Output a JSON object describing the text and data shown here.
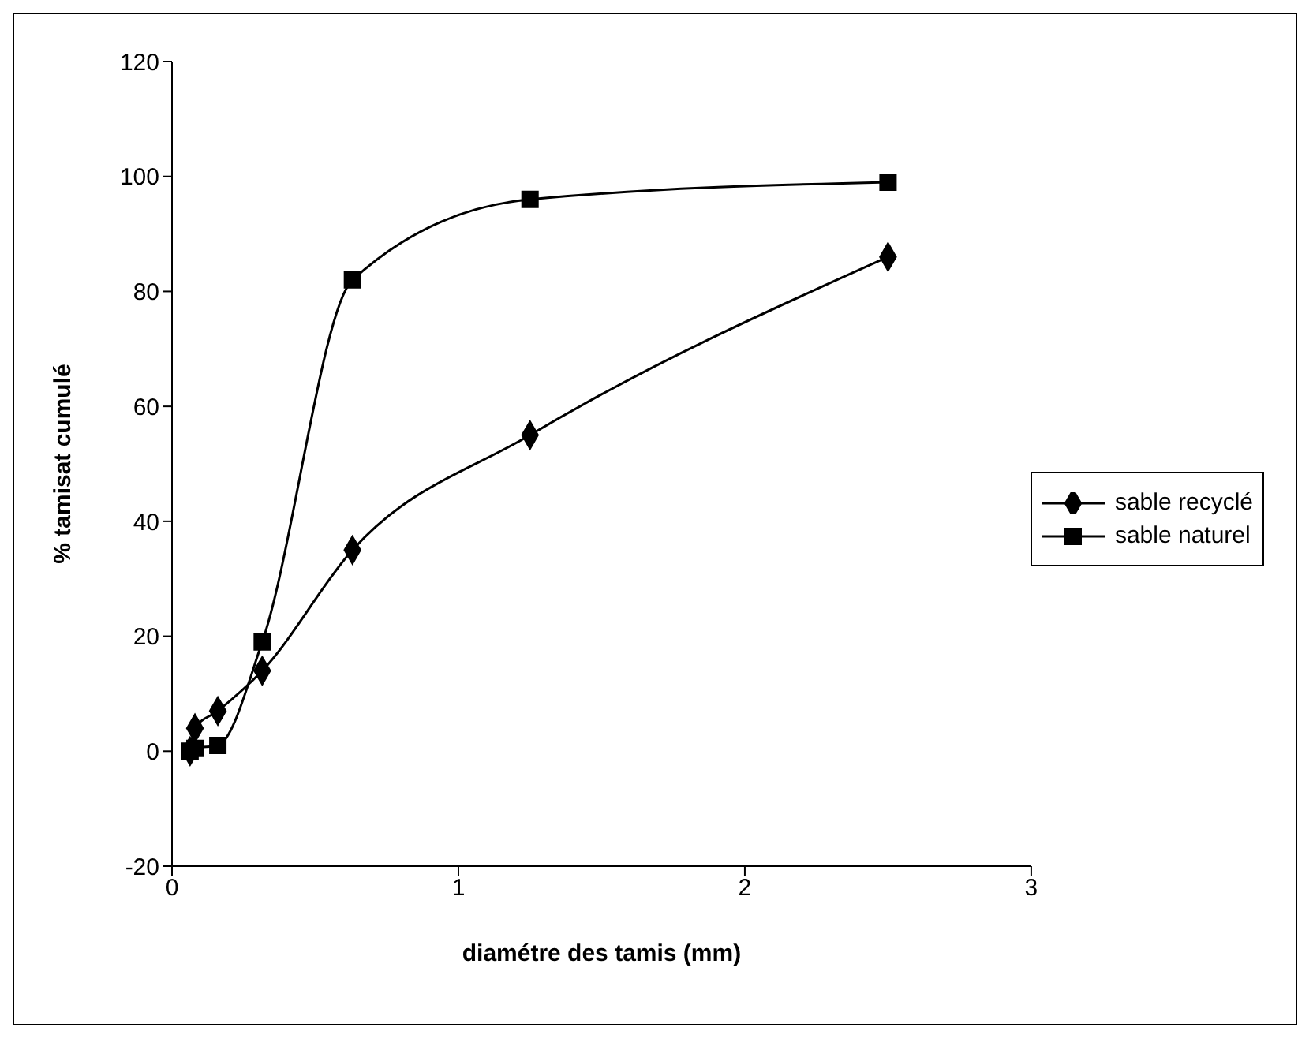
{
  "chart_data": {
    "type": "line",
    "xlabel": "diamétre des tamis (mm)",
    "ylabel": "% tamisat cumulé",
    "series": [
      {
        "name": "sable recyclé",
        "color": "#000000",
        "marker": "diamond",
        "x": [
          0.063,
          0.08,
          0.16,
          0.315,
          0.63,
          1.25,
          2.5
        ],
        "values": [
          0,
          4,
          7,
          14,
          35,
          55,
          86
        ]
      },
      {
        "name": "sable naturel",
        "color": "#000000",
        "marker": "square",
        "x": [
          0.063,
          0.08,
          0.16,
          0.315,
          0.63,
          1.25,
          2.5
        ],
        "values": [
          0,
          0.5,
          1,
          19,
          82,
          96,
          99
        ]
      }
    ],
    "xlim": [
      0,
      3
    ],
    "xticks": [
      0,
      1,
      2,
      3
    ],
    "ylim": [
      -20,
      120
    ],
    "yticks": [
      -20,
      0,
      20,
      40,
      60,
      80,
      100,
      120
    ],
    "grid": false,
    "legend": "right"
  }
}
